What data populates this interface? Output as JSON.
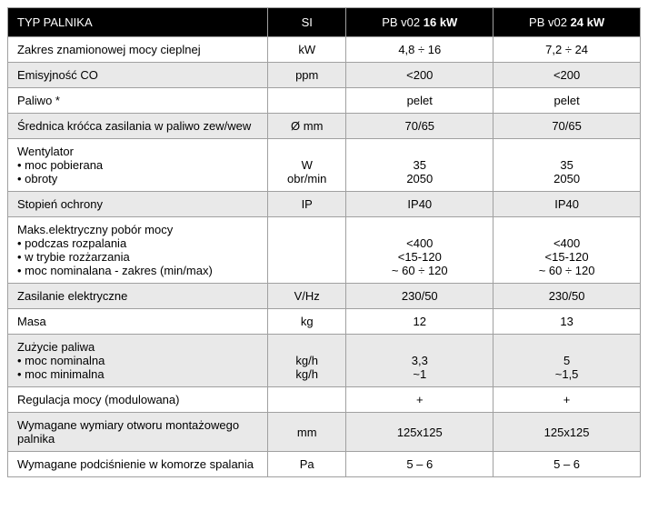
{
  "header": {
    "col0": "TYP PALNIKA",
    "col1": "SI",
    "col2_prefix": "PB v02 ",
    "col2_bold": "16 kW",
    "col3_prefix": "PB v02 ",
    "col3_bold": "24 kW"
  },
  "rows": [
    {
      "alt": false,
      "label": "Zakres znamionowej mocy cieplnej",
      "si": "kW",
      "v1": "4,8 ÷ 16",
      "v2": "7,2 ÷ 24"
    },
    {
      "alt": true,
      "label": "Emisyjność CO",
      "si": "ppm",
      "v1": "<200",
      "v2": "<200"
    },
    {
      "alt": false,
      "label": "Paliwo *",
      "si": "",
      "v1": "pelet",
      "v2": "pelet"
    },
    {
      "alt": true,
      "label": "Średnica króćca zasilania w paliwo zew/wew",
      "si": "Ø mm",
      "v1": "70/65",
      "v2": "70/65"
    },
    {
      "alt": false,
      "label_lines": [
        "Wentylator",
        "• moc pobierana",
        "• obroty"
      ],
      "si_lines": [
        "",
        "W",
        "obr/min"
      ],
      "v1_lines": [
        "",
        "35",
        "2050"
      ],
      "v2_lines": [
        "",
        "35",
        "2050"
      ]
    },
    {
      "alt": true,
      "label": "Stopień ochrony",
      "si": "IP",
      "v1": "IP40",
      "v2": "IP40"
    },
    {
      "alt": false,
      "label_lines": [
        "Maks.elektryczny pobór mocy",
        "• podczas rozpalania",
        "• w trybie rozżarzania",
        "• moc nominalana - zakres (min/max)"
      ],
      "si_lines": [
        "",
        "",
        "",
        ""
      ],
      "v1_lines": [
        "",
        "<400",
        "<15-120",
        "~ 60 ÷ 120"
      ],
      "v2_lines": [
        "",
        "<400",
        "<15-120",
        "~ 60 ÷ 120"
      ]
    },
    {
      "alt": true,
      "label": "Zasilanie elektryczne",
      "si": "V/Hz",
      "v1": "230/50",
      "v2": "230/50"
    },
    {
      "alt": false,
      "label": "Masa",
      "si": "kg",
      "v1": "12",
      "v2": "13"
    },
    {
      "alt": true,
      "label_lines": [
        "Zużycie paliwa",
        "• moc nominalna",
        "• moc minimalna"
      ],
      "si_lines": [
        "",
        "kg/h",
        "kg/h"
      ],
      "v1_lines": [
        "",
        "3,3",
        "~1"
      ],
      "v2_lines": [
        "",
        "5",
        "~1,5"
      ]
    },
    {
      "alt": false,
      "label": "Regulacja mocy (modulowana)",
      "si": "",
      "v1": "+",
      "v2": "+"
    },
    {
      "alt": true,
      "label": "Wymagane wymiary otworu montażowego palnika",
      "si": "mm",
      "v1": "125x125",
      "v2": "125x125"
    },
    {
      "alt": false,
      "label": "Wymagane podciśnienie w komorze spalania",
      "si": "Pa",
      "v1": "5 – 6",
      "v2": "5 – 6"
    }
  ]
}
